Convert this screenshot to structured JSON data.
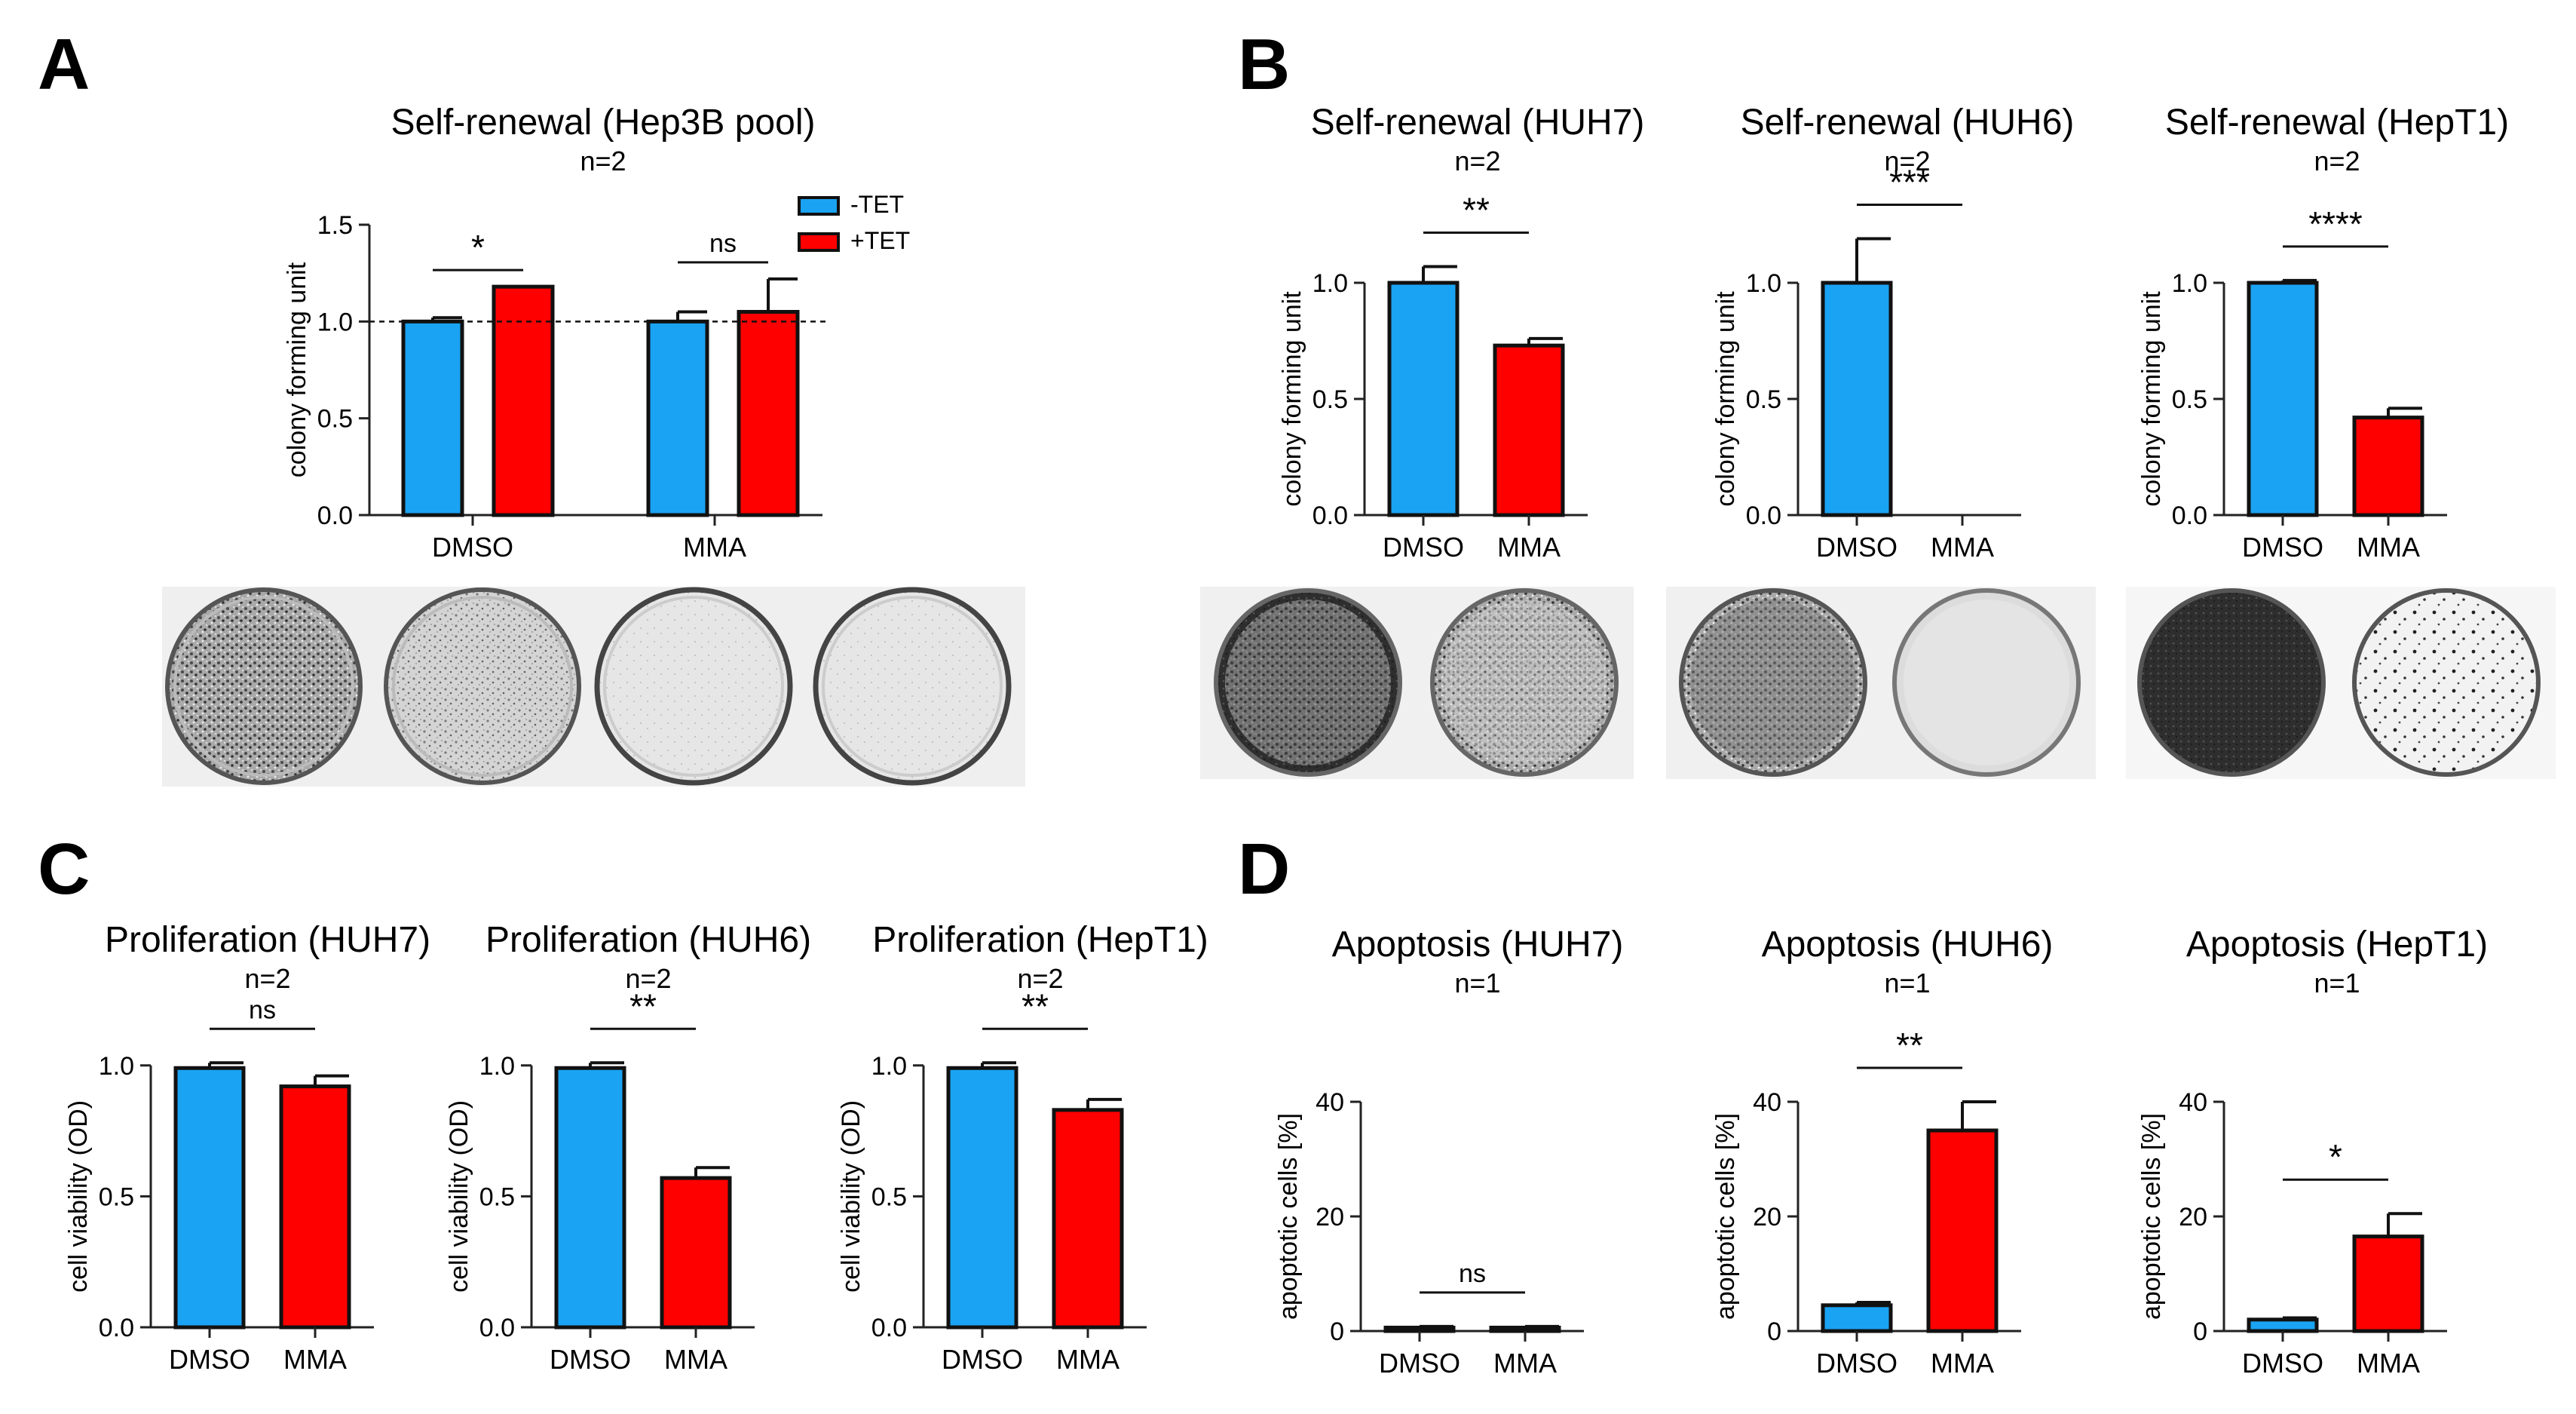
{
  "panels": {
    "A": {
      "letter": "A",
      "title": "Self-renewal (Hep3B pool)",
      "n": "n=2"
    },
    "B": {
      "letter": "B"
    },
    "C": {
      "letter": "C"
    },
    "D": {
      "letter": "D"
    }
  },
  "colors": {
    "minus_tet": "#1aa3f2",
    "plus_tet": "#ff0000",
    "dmso": "#1aa3f2",
    "mma": "#ff0000"
  },
  "chart_data": [
    {
      "id": "A",
      "type": "bar",
      "title": "Self-renewal (Hep3B pool)",
      "subtitle": "n=2",
      "ylabel": "colony forming unit",
      "xlabel": "",
      "ylim": [
        0,
        1.5
      ],
      "yticks": [
        0.0,
        0.5,
        1.0,
        1.5
      ],
      "ytick_labels": [
        "0.0",
        "0.5",
        "1.0",
        "1.5"
      ],
      "categories": [
        "DMSO",
        "MMA"
      ],
      "series": [
        {
          "name": "-TET",
          "color": "#1aa3f2",
          "values": [
            1.0,
            1.0
          ],
          "errors": [
            0.02,
            0.05
          ]
        },
        {
          "name": "+TET",
          "color": "#ff0000",
          "values": [
            1.18,
            1.05
          ],
          "errors": [
            0.0,
            0.17
          ]
        }
      ],
      "reference_line": 1.0,
      "significance": [
        "*",
        "ns"
      ],
      "legend": [
        "-TET",
        "+TET"
      ],
      "legend_position": "top-right"
    },
    {
      "id": "B1",
      "type": "bar",
      "title": "Self-renewal (HUH7)",
      "subtitle": "n=2",
      "ylabel": "colony forming unit",
      "ylim": [
        0,
        1.25
      ],
      "yticks": [
        0.0,
        0.5,
        1.0
      ],
      "ytick_labels": [
        "0.0",
        "0.5",
        "1.0"
      ],
      "categories": [
        "DMSO",
        "MMA"
      ],
      "values": [
        1.0,
        0.73
      ],
      "errors": [
        0.07,
        0.03
      ],
      "colors": [
        "#1aa3f2",
        "#ff0000"
      ],
      "significance": "**"
    },
    {
      "id": "B2",
      "type": "bar",
      "title": "Self-renewal (HUH6)",
      "subtitle": "n=2",
      "ylabel": "colony forming unit",
      "ylim": [
        0,
        1.25
      ],
      "yticks": [
        0.0,
        0.5,
        1.0
      ],
      "ytick_labels": [
        "0.0",
        "0.5",
        "1.0"
      ],
      "categories": [
        "DMSO",
        "MMA"
      ],
      "values": [
        1.0,
        0.0
      ],
      "errors": [
        0.19,
        0.0
      ],
      "colors": [
        "#1aa3f2",
        "#ff0000"
      ],
      "significance": "***"
    },
    {
      "id": "B3",
      "type": "bar",
      "title": "Self-renewal (HepT1)",
      "subtitle": "n=2",
      "ylabel": "colony forming unit",
      "ylim": [
        0,
        1.25
      ],
      "yticks": [
        0.0,
        0.5,
        1.0
      ],
      "ytick_labels": [
        "0.0",
        "0.5",
        "1.0"
      ],
      "categories": [
        "DMSO",
        "MMA"
      ],
      "values": [
        1.0,
        0.42
      ],
      "errors": [
        0.01,
        0.04
      ],
      "colors": [
        "#1aa3f2",
        "#ff0000"
      ],
      "significance": "****"
    },
    {
      "id": "C1",
      "type": "bar",
      "title": "Proliferation (HUH7)",
      "subtitle": "n=2",
      "ylabel": "cell viability (OD)",
      "ylim": [
        0,
        1.08
      ],
      "yticks": [
        0.0,
        0.5,
        1.0
      ],
      "ytick_labels": [
        "0.0",
        "0.5",
        "1.0"
      ],
      "categories": [
        "DMSO",
        "MMA"
      ],
      "values": [
        0.99,
        0.92
      ],
      "errors": [
        0.02,
        0.04
      ],
      "colors": [
        "#1aa3f2",
        "#ff0000"
      ],
      "significance": "ns"
    },
    {
      "id": "C2",
      "type": "bar",
      "title": "Proliferation (HUH6)",
      "subtitle": "n=2",
      "ylabel": "cell viability (OD)",
      "ylim": [
        0,
        1.08
      ],
      "yticks": [
        0.0,
        0.5,
        1.0
      ],
      "ytick_labels": [
        "0.0",
        "0.5",
        "1.0"
      ],
      "categories": [
        "DMSO",
        "MMA"
      ],
      "values": [
        0.99,
        0.57
      ],
      "errors": [
        0.02,
        0.04
      ],
      "colors": [
        "#1aa3f2",
        "#ff0000"
      ],
      "significance": "**"
    },
    {
      "id": "C3",
      "type": "bar",
      "title": "Proliferation (HepT1)",
      "subtitle": "n=2",
      "ylabel": "cell viability (OD)",
      "ylim": [
        0,
        1.08
      ],
      "yticks": [
        0.0,
        0.5,
        1.0
      ],
      "ytick_labels": [
        "0.0",
        "0.5",
        "1.0"
      ],
      "categories": [
        "DMSO",
        "MMA"
      ],
      "values": [
        0.99,
        0.83
      ],
      "errors": [
        0.02,
        0.04
      ],
      "colors": [
        "#1aa3f2",
        "#ff0000"
      ],
      "significance": "**"
    },
    {
      "id": "D1",
      "type": "bar",
      "title": "Apoptosis (HUH7)",
      "subtitle": "n=1",
      "ylabel": "apoptotic cells [%]",
      "ylim": [
        0,
        50
      ],
      "yticks": [
        0,
        20,
        40
      ],
      "ytick_labels": [
        "0",
        "20",
        "40"
      ],
      "categories": [
        "DMSO",
        "MMA"
      ],
      "values": [
        0.6,
        0.6
      ],
      "errors": [
        0.2,
        0.2
      ],
      "colors": [
        "#1aa3f2",
        "#ff0000"
      ],
      "significance": "ns"
    },
    {
      "id": "D2",
      "type": "bar",
      "title": "Apoptosis (HUH6)",
      "subtitle": "n=1",
      "ylabel": "apoptotic cells [%]",
      "ylim": [
        0,
        50
      ],
      "yticks": [
        0,
        20,
        40
      ],
      "ytick_labels": [
        "0",
        "20",
        "40"
      ],
      "categories": [
        "DMSO",
        "MMA"
      ],
      "values": [
        4.5,
        35
      ],
      "errors": [
        0.5,
        5
      ],
      "colors": [
        "#1aa3f2",
        "#ff0000"
      ],
      "significance": "**"
    },
    {
      "id": "D3",
      "type": "bar",
      "title": "Apoptosis (HepT1)",
      "subtitle": "n=1",
      "ylabel": "apoptotic cells [%]",
      "ylim": [
        0,
        50
      ],
      "yticks": [
        0,
        20,
        40
      ],
      "ytick_labels": [
        "0",
        "20",
        "40"
      ],
      "categories": [
        "DMSO",
        "MMA"
      ],
      "values": [
        2,
        16.5
      ],
      "errors": [
        0.3,
        4
      ],
      "colors": [
        "#1aa3f2",
        "#ff0000"
      ],
      "significance": "*"
    }
  ],
  "colony_images": [
    {
      "group": "A",
      "wells": [
        "-TET DMSO",
        "+TET DMSO",
        "-TET MMA",
        "+TET MMA"
      ]
    },
    {
      "group": "B1",
      "wells": [
        "DMSO",
        "MMA"
      ]
    },
    {
      "group": "B2",
      "wells": [
        "DMSO",
        "MMA"
      ]
    },
    {
      "group": "B3",
      "wells": [
        "DMSO",
        "MMA"
      ]
    }
  ]
}
